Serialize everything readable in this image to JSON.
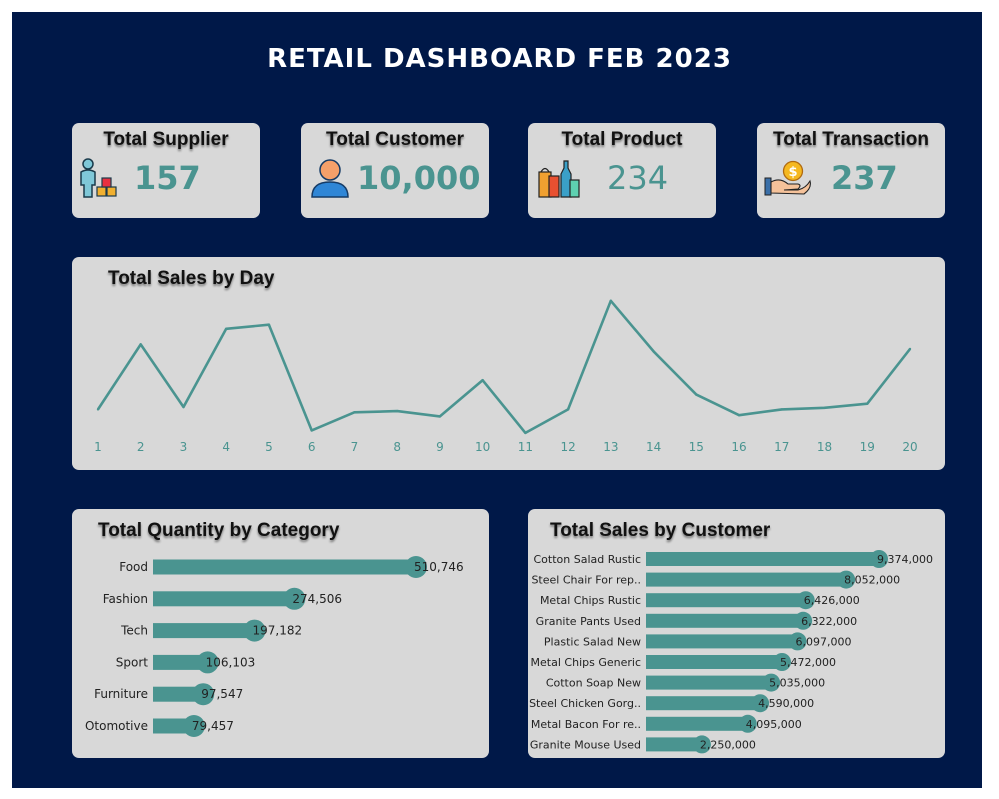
{
  "dashboard": {
    "title": "RETAIL DASHBOARD FEB 2023"
  },
  "kpis": [
    {
      "label": "Total Supplier",
      "value": "157",
      "icon": "supplier-icon"
    },
    {
      "label": "Total Customer",
      "value": "10,000",
      "icon": "customer-icon"
    },
    {
      "label": "Total Product",
      "value": "234",
      "icon": "product-icon"
    },
    {
      "label": "Total Transaction",
      "value": "237",
      "icon": "transaction-icon"
    }
  ],
  "colors": {
    "background": "#001848",
    "card": "#d8d8d8",
    "accent": "#4a9490",
    "text": "#111111"
  },
  "chart_data": [
    {
      "type": "line",
      "title": "Total Sales by Day",
      "x": [
        1,
        2,
        3,
        4,
        5,
        6,
        7,
        8,
        9,
        10,
        11,
        12,
        13,
        14,
        15,
        16,
        17,
        18,
        19,
        20
      ],
      "series": [
        {
          "values": [
            6.7,
            22.5,
            7.3,
            26.3,
            27.3,
            1.6,
            6.0,
            6.3,
            5.0,
            13.8,
            1.0,
            6.7,
            33.1,
            20.8,
            10.3,
            5.3,
            6.7,
            7.1,
            8.1,
            21.4
          ]
        }
      ],
      "ylim": [
        0,
        35
      ],
      "grid": false,
      "show_y_axis": false
    },
    {
      "type": "bar",
      "orientation": "horizontal",
      "title": "Total Quantity by Category",
      "categories": [
        "Food",
        "Fashion",
        "Tech",
        "Sport",
        "Furniture",
        "Otomotive"
      ],
      "values": [
        510746,
        274506,
        197182,
        106103,
        97547,
        79457
      ],
      "labels": [
        "510,746",
        "274,506",
        "197,182",
        "106,103",
        "97,547",
        "79,457"
      ],
      "xlim": [
        0,
        510746
      ]
    },
    {
      "type": "bar",
      "orientation": "horizontal",
      "title": "Total Sales by Customer",
      "categories": [
        "Cotton Salad Rustic",
        "Steel Chair For rep..",
        "Metal Chips Rustic",
        "Granite Pants Used",
        "Plastic Salad New",
        "Metal Chips Generic",
        "Cotton Soap New",
        "Steel Chicken Gorg..",
        "Metal Bacon For re..",
        "Granite Mouse Used"
      ],
      "values": [
        9374000,
        8052000,
        6426000,
        6322000,
        6097000,
        5472000,
        5035000,
        4590000,
        4095000,
        2250000
      ],
      "labels": [
        "9,374,000",
        "8,052,000",
        "6,426,000",
        "6,322,000",
        "6,097,000",
        "5,472,000",
        "5,035,000",
        "4,590,000",
        "4,095,000",
        "2,250,000"
      ],
      "xlim": [
        0,
        9374000
      ]
    }
  ]
}
